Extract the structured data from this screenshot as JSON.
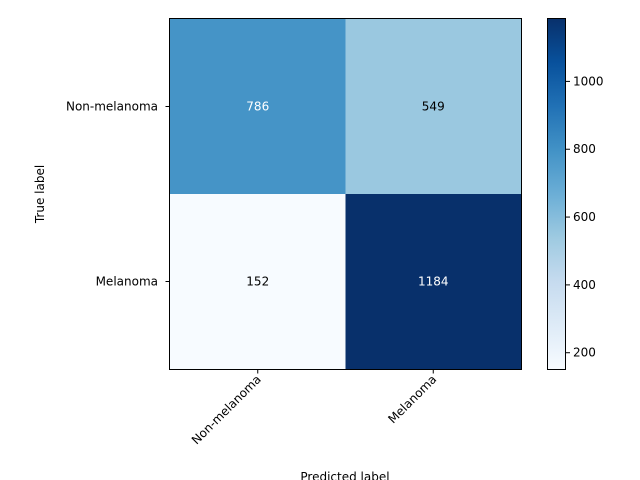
{
  "chart_data": {
    "type": "heatmap",
    "title": "",
    "xlabel": "Predicted label",
    "ylabel": "True label",
    "x_categories": [
      "Non-melanoma",
      "Melanoma"
    ],
    "y_categories": [
      "Non-melanoma",
      "Melanoma"
    ],
    "values": [
      [
        786,
        549
      ],
      [
        152,
        1184
      ]
    ],
    "colormap": "Blues",
    "colorbar": {
      "min": 152,
      "max": 1184,
      "ticks": [
        200,
        400,
        600,
        800,
        1000
      ]
    },
    "grid": false,
    "text_colors": {
      "light": "#ffffff",
      "dark": "#000000"
    }
  }
}
